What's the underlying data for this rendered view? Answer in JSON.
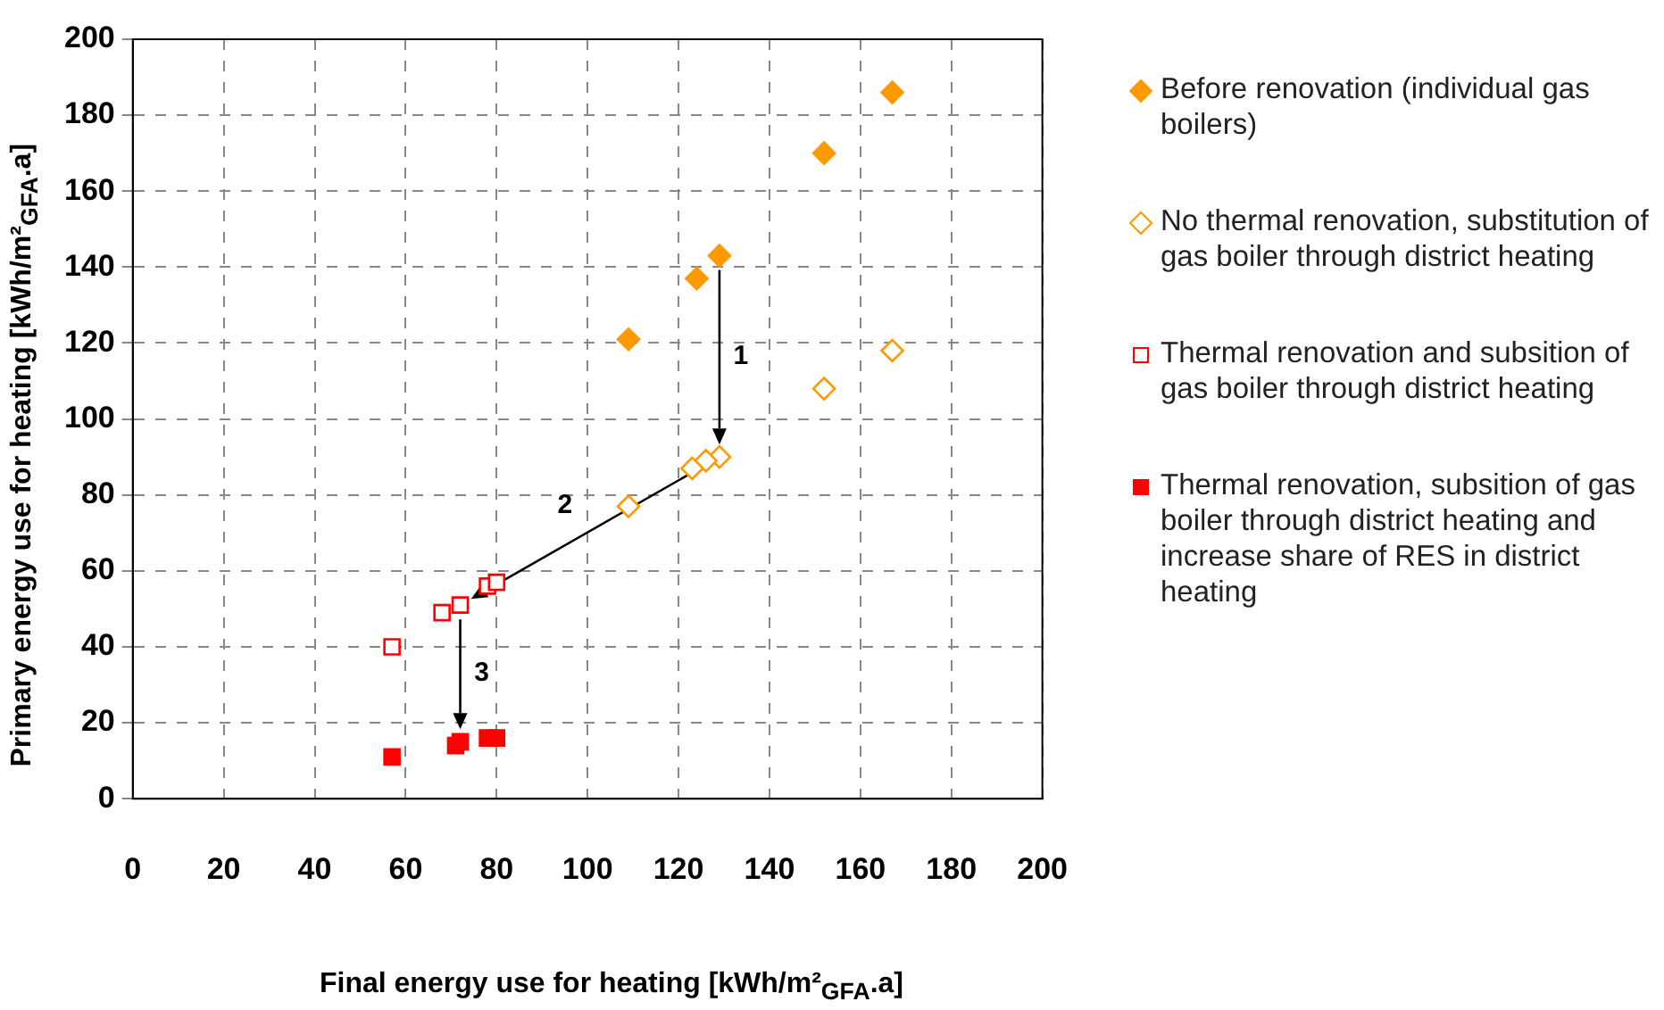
{
  "chart_data": {
    "type": "scatter",
    "xlabel": "Final energy use for heating [kWh/m²$_{GFA}$.a]",
    "ylabel": "Primary energy use for heating [kWh/m²$_{GFA}$.a]",
    "xlim": [
      0,
      200
    ],
    "xticks": [
      0,
      20,
      40,
      60,
      80,
      100,
      120,
      140,
      160,
      180,
      200
    ],
    "ylim": [
      0,
      200
    ],
    "yticks": [
      0,
      20,
      40,
      60,
      80,
      100,
      120,
      140,
      160,
      180,
      200
    ],
    "grid": true,
    "legend": "right",
    "annotations": [
      "1",
      "2",
      {
        "text": "3",
        "x": 72,
        "y": 15
      }
    ],
    "series": [
      {
        "name": "Before renovation (individual gas boilers)",
        "color": "#ff9900",
        "marker": "diamond",
        "x": [
          129,
          124,
          109,
          152,
          167
        ],
        "values": [
          143,
          137,
          121,
          170,
          186
        ]
      },
      {
        "name": "No thermal renovation, substitution of gas boiler through district heating",
        "color": "#ff9900",
        "marker": "diamond-open",
        "x": [
          129,
          126,
          123,
          109,
          152,
          167
        ],
        "values": [
          90,
          89,
          87,
          77,
          108,
          118
        ]
      },
      {
        "name": "Thermal renovation and subsition of gas boiler through district heating",
        "color": "#ff0000",
        "marker": "square-open",
        "x": [
          72,
          68,
          78,
          80,
          57
        ],
        "values": [
          51,
          49,
          56,
          57,
          40
        ]
      },
      {
        "name": "Thermal renovation, subsition of gas boiler through district heating and increase share of RES in district heating",
        "color": "#ff0000",
        "marker": "square",
        "x": [
          72,
          71,
          78,
          80,
          57
        ],
        "values": [
          15,
          14,
          16,
          16,
          11
        ]
      }
    ]
  }
}
